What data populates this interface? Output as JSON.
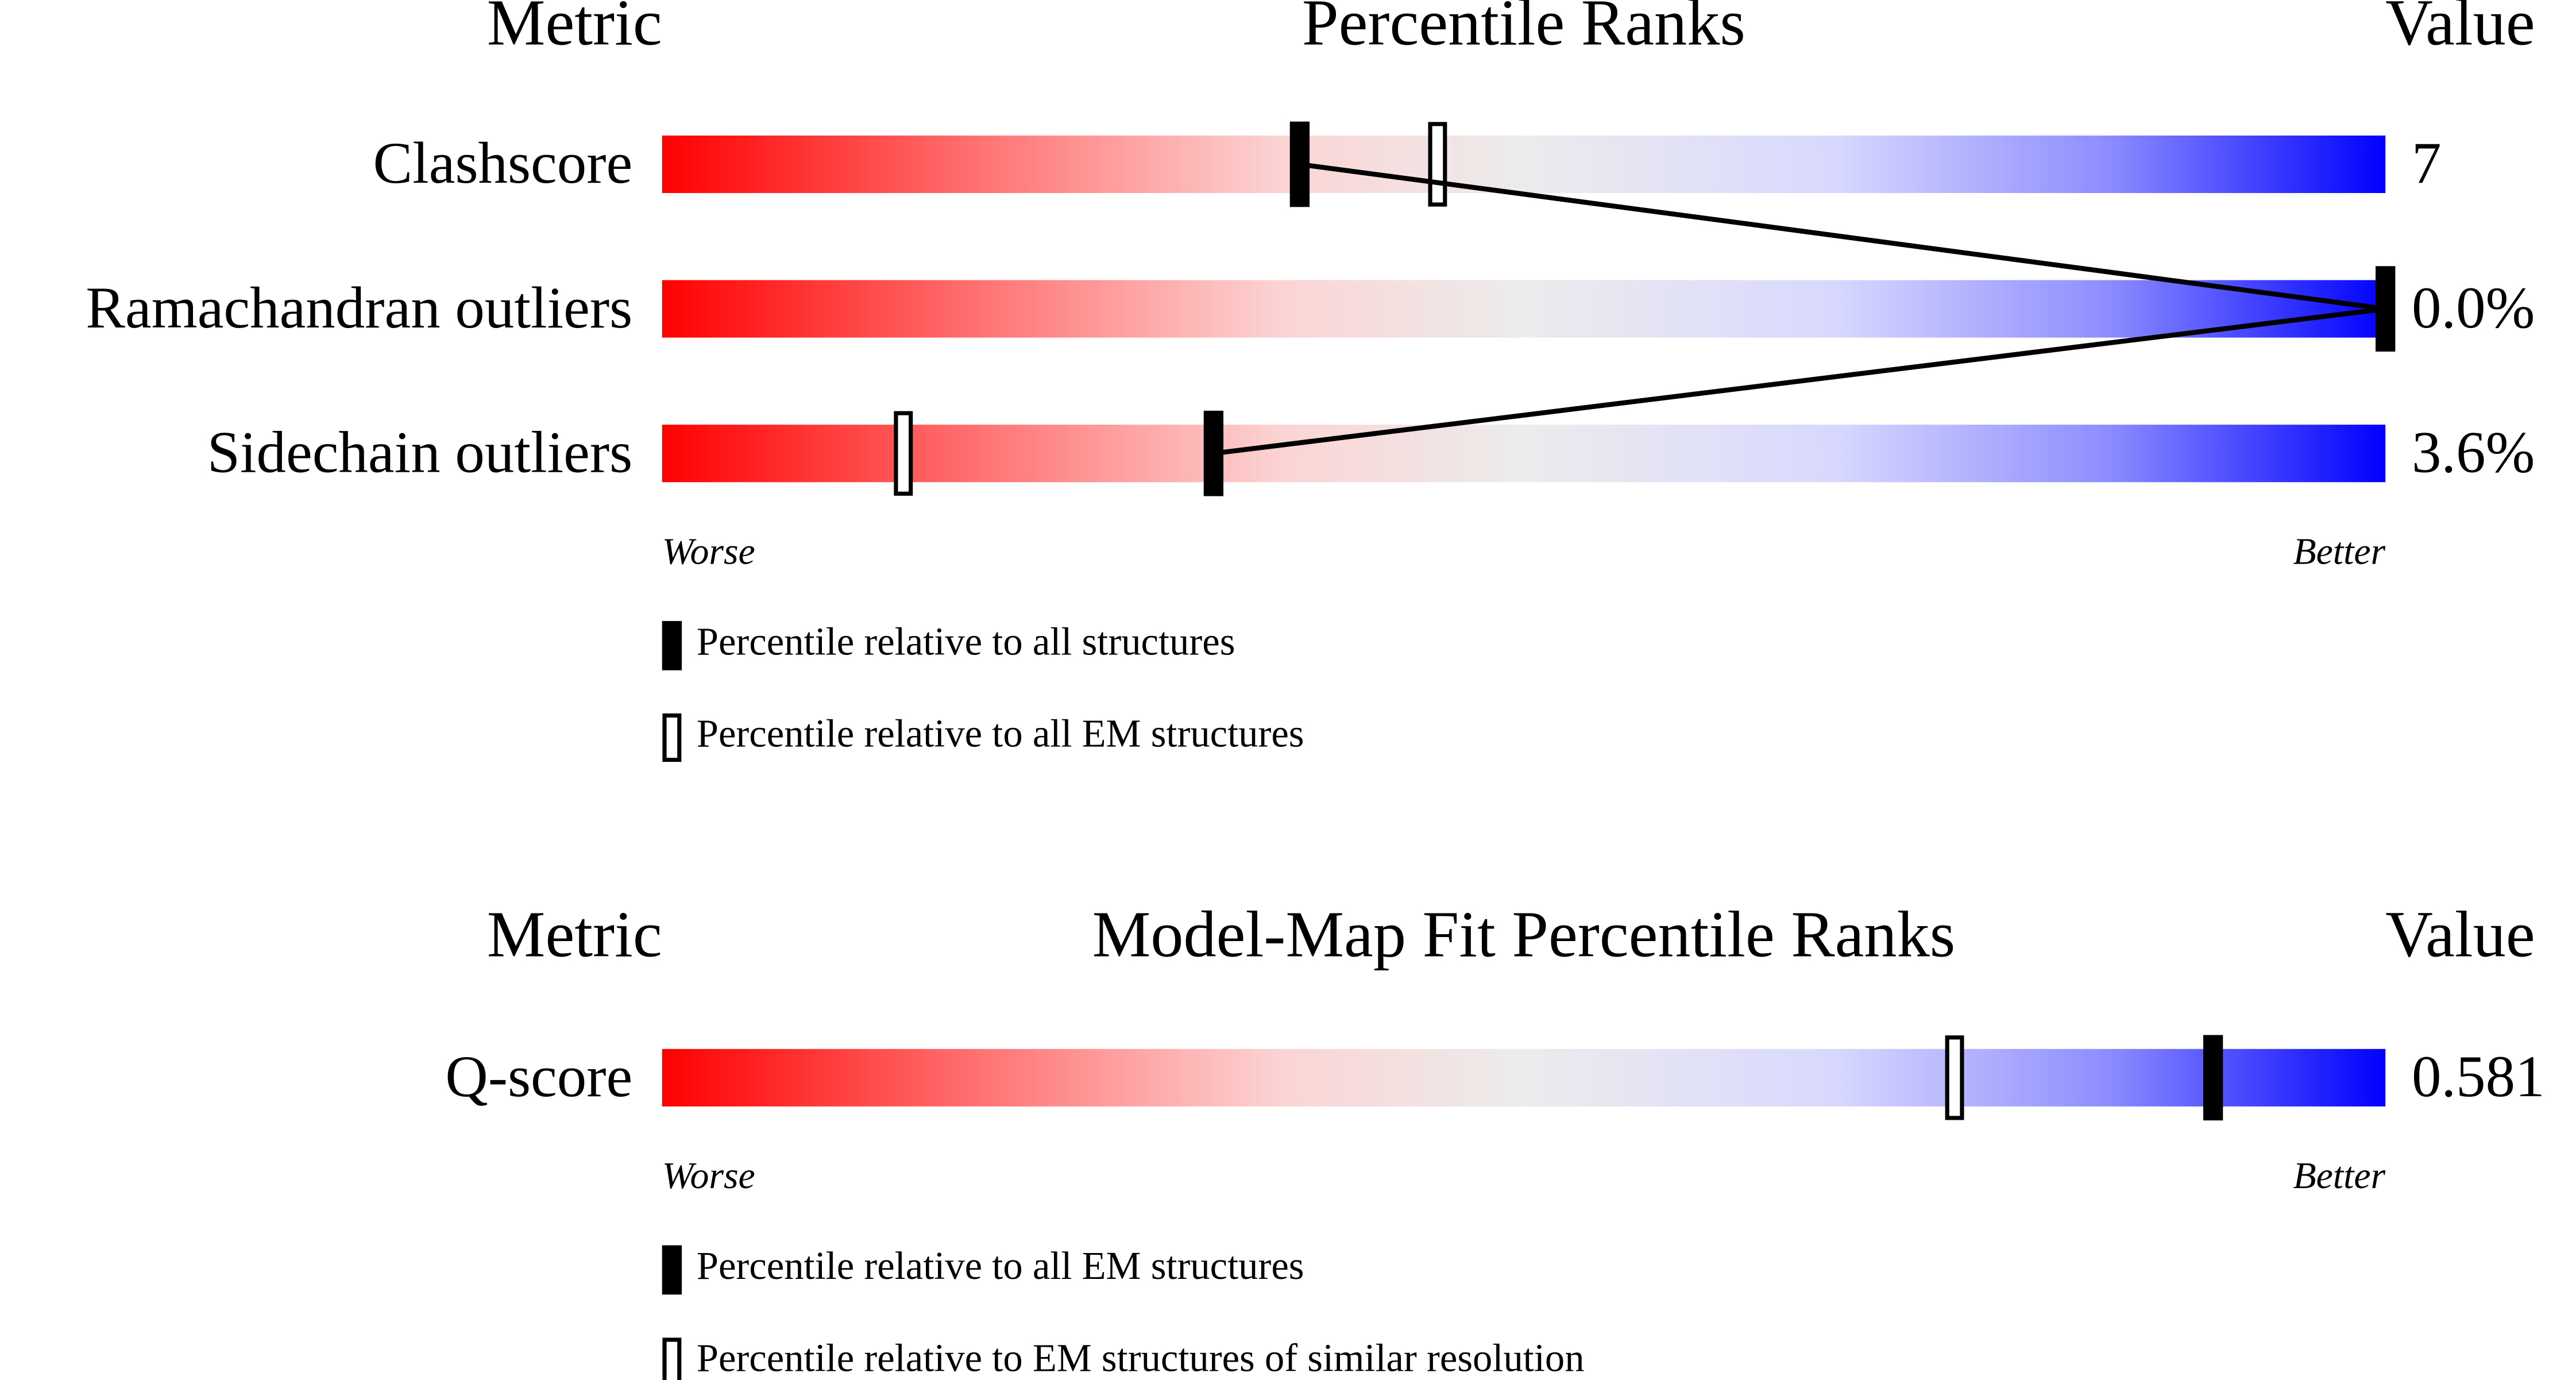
{
  "chart_data": [
    {
      "type": "percentile",
      "metric_header": "Metric",
      "title": "Percentile Ranks",
      "value_header": "Value",
      "categories": [
        "Clashscore",
        "Ramachandran outliers",
        "Sidechain outliers"
      ],
      "metric_values": [
        "7",
        "0.0%",
        "3.6%"
      ],
      "xlim": [
        0,
        100
      ],
      "worse_label": "Worse",
      "better_label": "Better",
      "series": [
        {
          "name": "Percentile relative to all structures",
          "style": "filled",
          "color": "#000000",
          "values": [
            37,
            100,
            32
          ]
        },
        {
          "name": "Percentile relative to all EM structures",
          "style": "outline",
          "color": "#000000",
          "values": [
            45,
            100,
            14
          ]
        }
      ]
    },
    {
      "type": "percentile",
      "metric_header": "Metric",
      "title": "Model-Map Fit Percentile Ranks",
      "value_header": "Value",
      "categories": [
        "Q-score"
      ],
      "metric_values": [
        "0.581"
      ],
      "xlim": [
        0,
        100
      ],
      "worse_label": "Worse",
      "better_label": "Better",
      "series": [
        {
          "name": "Percentile relative to all EM structures",
          "style": "filled",
          "color": "#000000",
          "values": [
            90
          ]
        },
        {
          "name": "Percentile relative to EM structures of similar resolution",
          "style": "outline",
          "color": "#000000",
          "values": [
            75
          ]
        }
      ]
    }
  ]
}
